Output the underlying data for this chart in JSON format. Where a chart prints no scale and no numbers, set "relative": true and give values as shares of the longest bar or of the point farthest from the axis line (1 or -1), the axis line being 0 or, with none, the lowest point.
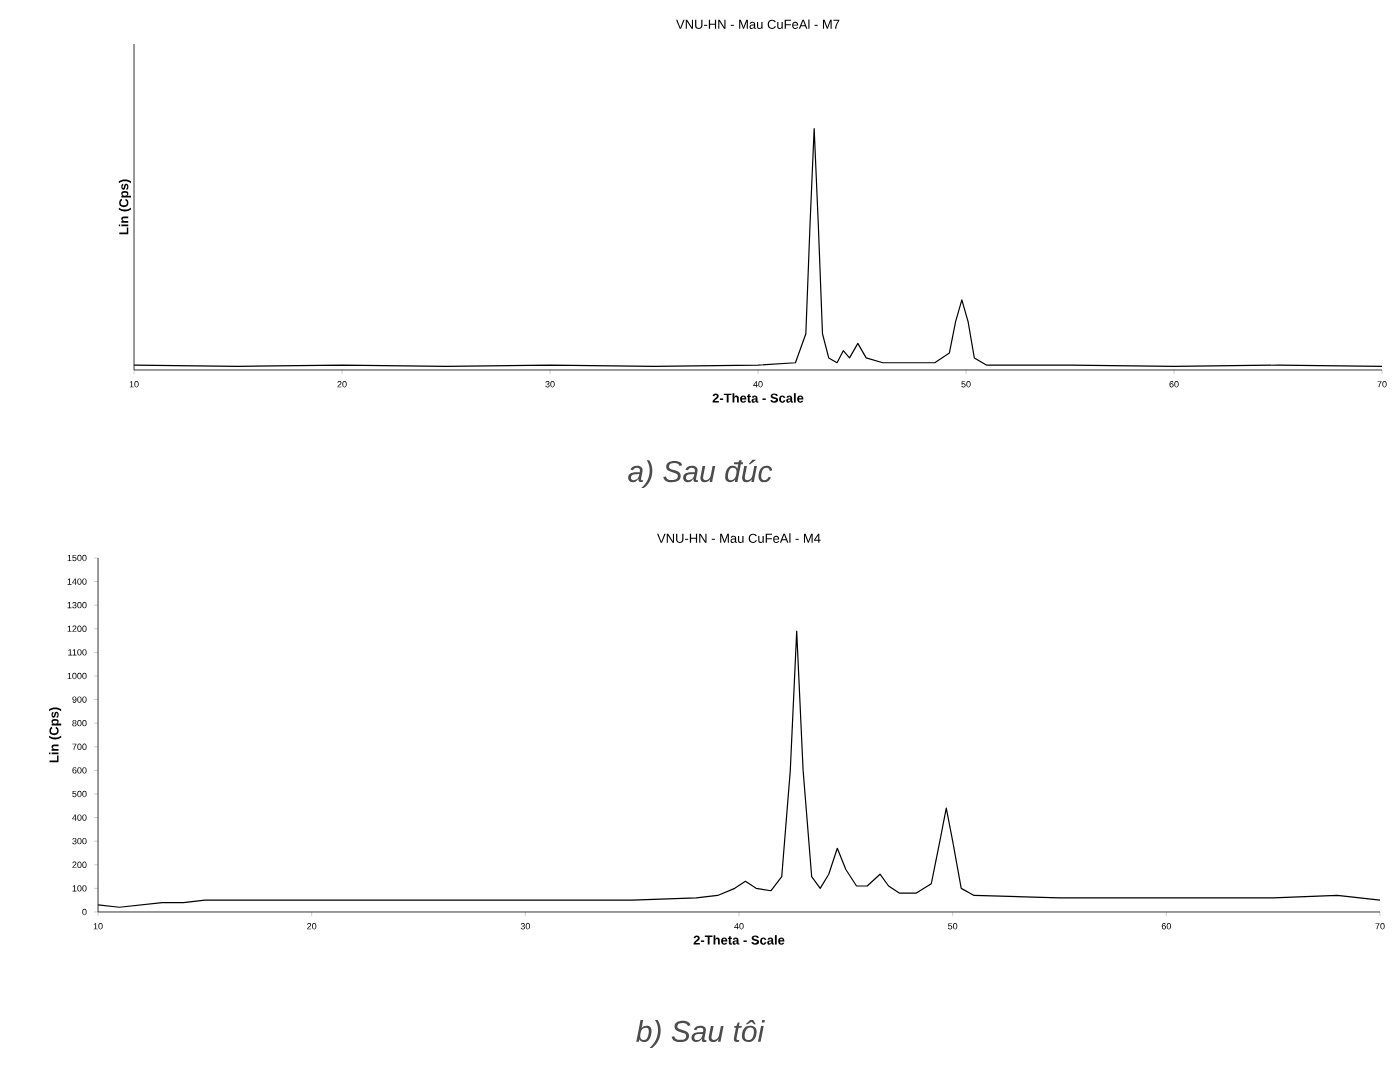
{
  "chart_data": [
    {
      "type": "line",
      "title": "VNU-HN - Mau CuFeAl - M7",
      "xlabel": "2-Theta - Scale",
      "ylabel": "Lin (Cps)",
      "relative": true,
      "color": "#000000",
      "x": [
        10,
        15,
        20,
        25,
        30,
        35,
        40,
        41.8,
        42.3,
        42.5,
        42.7,
        42.9,
        43.1,
        43.4,
        43.8,
        44.1,
        44.4,
        44.8,
        45.2,
        46,
        48.5,
        49.2,
        49.5,
        49.8,
        50.1,
        50.4,
        51,
        55,
        60,
        65,
        70
      ],
      "values": [
        0.02,
        0.015,
        0.02,
        0.015,
        0.02,
        0.015,
        0.02,
        0.03,
        0.15,
        0.6,
        1,
        0.6,
        0.15,
        0.05,
        0.03,
        0.08,
        0.05,
        0.11,
        0.05,
        0.03,
        0.03,
        0.07,
        0.2,
        0.29,
        0.2,
        0.05,
        0.02,
        0.02,
        0.015,
        0.02,
        0.015
      ],
      "xlim": [
        10,
        70
      ],
      "xticks": [
        10,
        20,
        30,
        40,
        50,
        60,
        70
      ],
      "annotations": [
        "a) Sau đúc"
      ]
    },
    {
      "type": "line",
      "title": "VNU-HN - Mau CuFeAl - M4",
      "xlabel": "2-Theta - Scale",
      "ylabel": "Lin (Cps)",
      "color": "#000000",
      "x": [
        10,
        11,
        12,
        13,
        14,
        15,
        17,
        20,
        25,
        30,
        35,
        38,
        39,
        39.8,
        40.3,
        40.8,
        41.5,
        42.0,
        42.4,
        42.7,
        43.0,
        43.4,
        43.8,
        44.2,
        44.6,
        45.0,
        45.5,
        46.0,
        46.6,
        47.0,
        47.5,
        48.3,
        49.0,
        49.4,
        49.7,
        50.0,
        50.4,
        51,
        55,
        60,
        65,
        68,
        70
      ],
      "values": [
        30,
        20,
        30,
        40,
        40,
        50,
        50,
        50,
        50,
        50,
        50,
        60,
        70,
        100,
        130,
        100,
        90,
        150,
        600,
        1190,
        600,
        150,
        100,
        160,
        270,
        180,
        110,
        110,
        160,
        110,
        80,
        80,
        120,
        300,
        440,
        300,
        100,
        70,
        60,
        60,
        60,
        70,
        50
      ],
      "xlim": [
        10,
        70
      ],
      "xticks": [
        10,
        20,
        30,
        40,
        50,
        60,
        70
      ],
      "ylim": [
        0,
        1500
      ],
      "yticks": [
        0,
        100,
        200,
        300,
        400,
        500,
        600,
        700,
        800,
        900,
        1000,
        1100,
        1200,
        1300,
        1400,
        1500
      ],
      "annotations": [
        "b) Sau tôi"
      ]
    }
  ]
}
